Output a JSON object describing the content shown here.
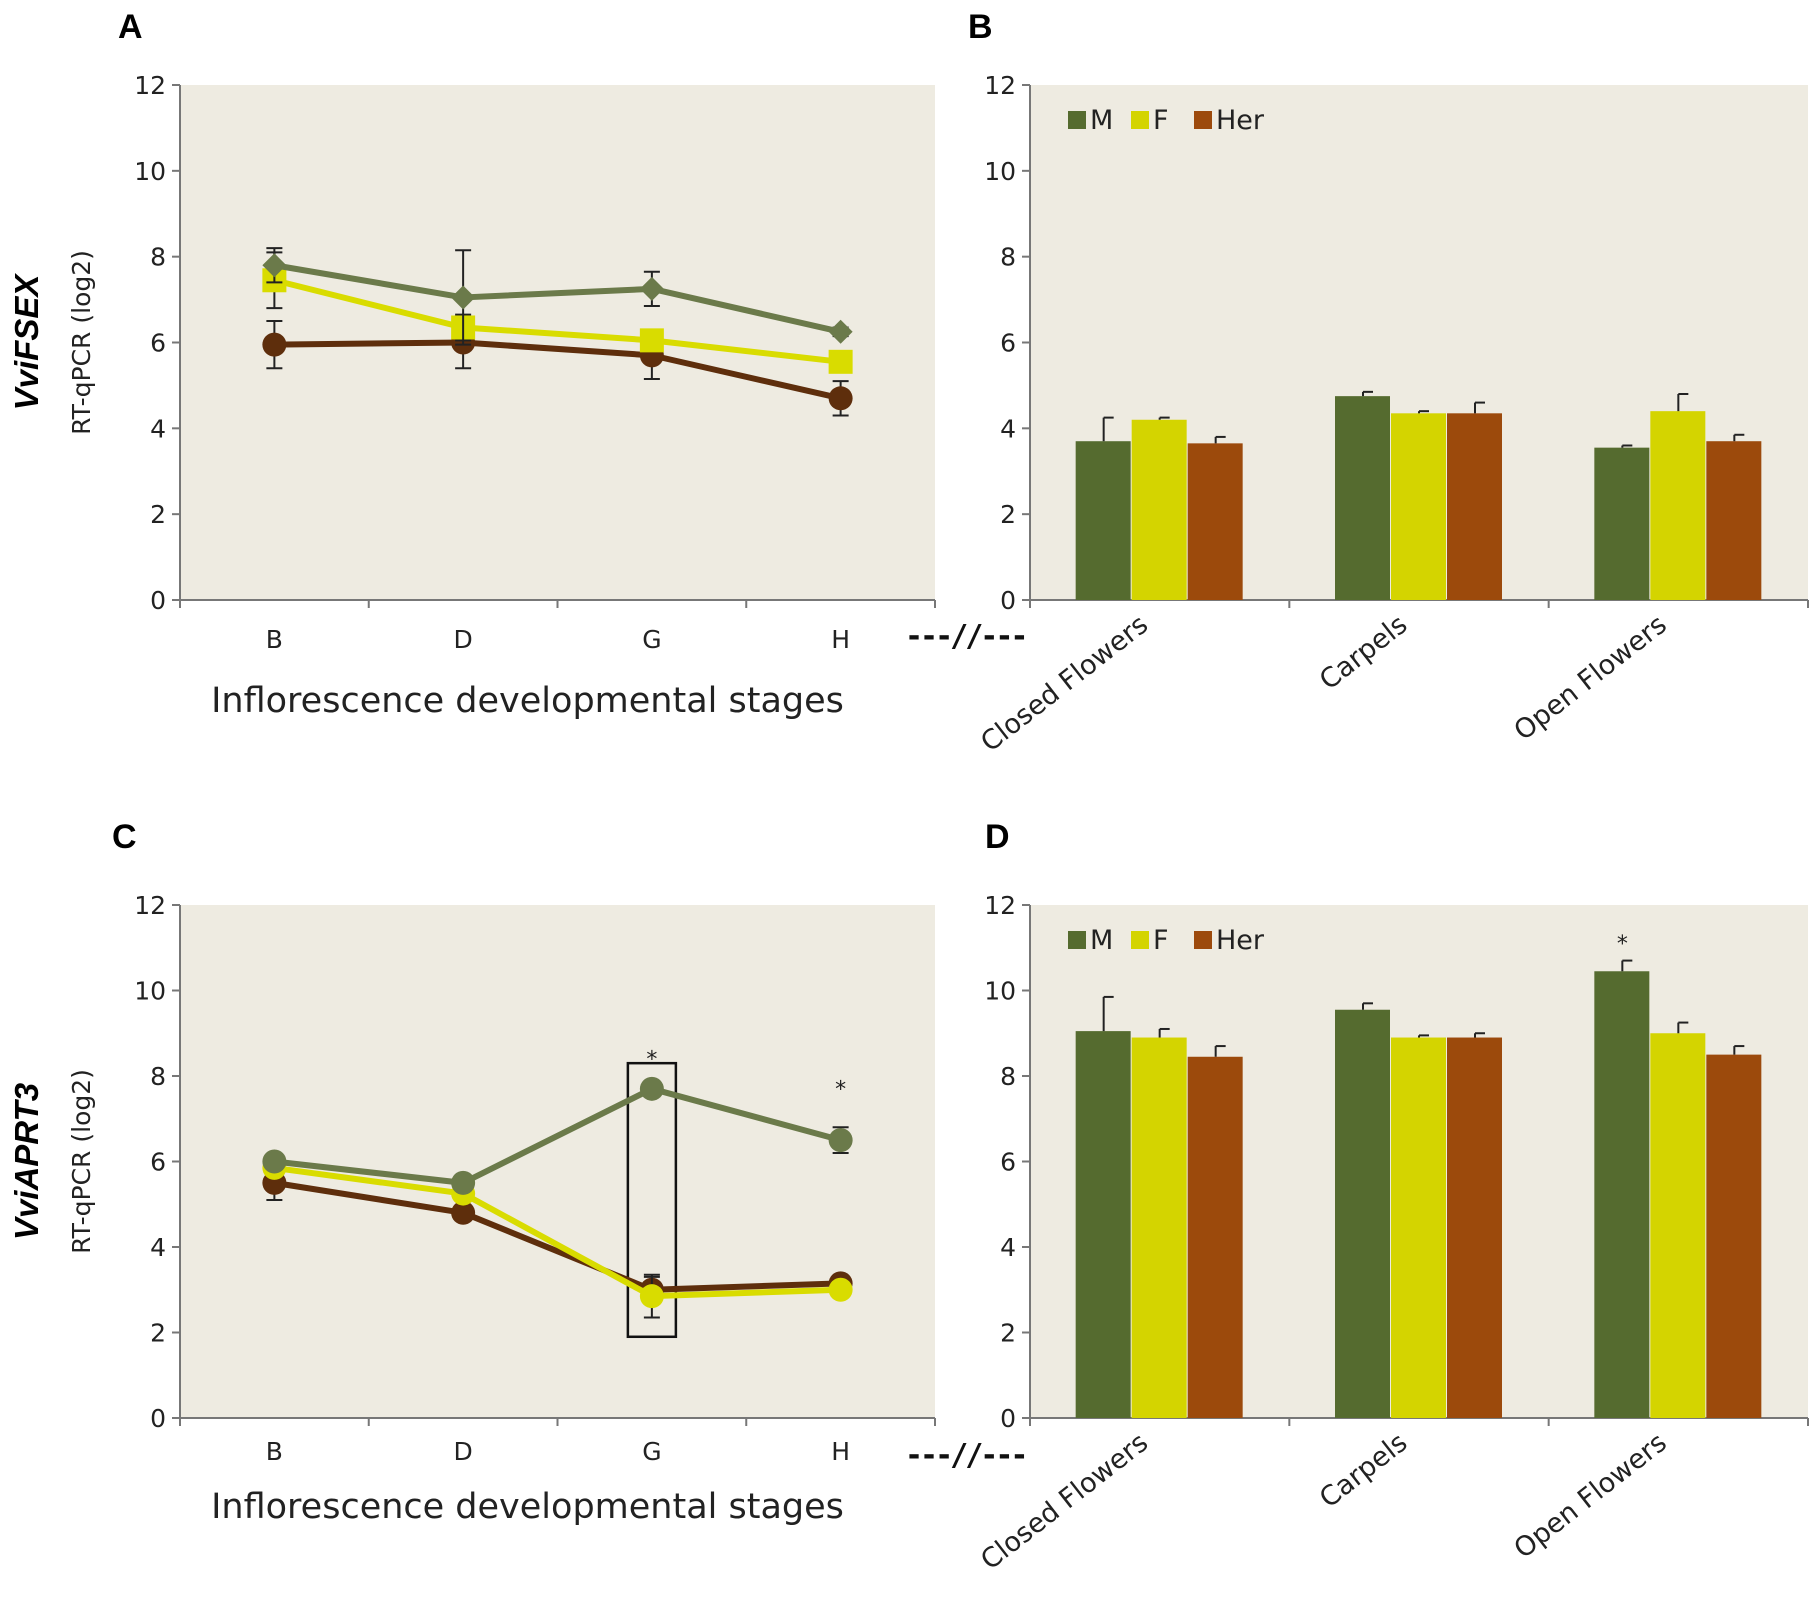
{
  "figure": {
    "break_mark": "---//---",
    "colors": {
      "plot_bg": "#eeebe1",
      "M": "#556b2f",
      "F": "#d4d400",
      "Her": "#9c4a0c",
      "M_line": "#6b7a4a",
      "F_line": "#d9dc00",
      "Her_line": "#5e2e0c",
      "axis": "#777777"
    }
  },
  "chart_data": [
    {
      "id": "A",
      "panel_label": "A",
      "gene_label": "VviFSEX",
      "type": "line",
      "ylabel": "RT-qPCR (log2)",
      "xlabel": "Inflorescence developmental stages",
      "ylim": [
        0,
        12
      ],
      "yticks": [
        "0",
        "2",
        "4",
        "6",
        "8",
        "10",
        "12"
      ],
      "categories": [
        "B",
        "D",
        "G",
        "H"
      ],
      "series": [
        {
          "name": "M",
          "marker": "diamond",
          "values": [
            7.8,
            7.05,
            7.25,
            6.25
          ],
          "errors": [
            0.4,
            1.1,
            0.4,
            0.1
          ]
        },
        {
          "name": "F",
          "marker": "square",
          "values": [
            7.45,
            6.35,
            6.05,
            5.55
          ],
          "errors": [
            0.65,
            0.3,
            0.2,
            0.2
          ]
        },
        {
          "name": "Her",
          "marker": "circle",
          "values": [
            5.95,
            6.0,
            5.7,
            4.7
          ],
          "errors": [
            0.55,
            0.6,
            0.55,
            0.4
          ]
        }
      ],
      "stars": [],
      "highlight_index": null
    },
    {
      "id": "B",
      "panel_label": "B",
      "type": "bar",
      "ylabel": "",
      "ylim": [
        0,
        12
      ],
      "yticks": [
        "0",
        "2",
        "4",
        "6",
        "8",
        "10",
        "12"
      ],
      "categories": [
        "Closed Flowers",
        "Carpels",
        "Open Flowers"
      ],
      "legend": [
        "M",
        "F",
        "Her"
      ],
      "series": [
        {
          "name": "M",
          "values": [
            3.7,
            4.75,
            3.55
          ],
          "errors": [
            0.55,
            0.1,
            0.05
          ]
        },
        {
          "name": "F",
          "values": [
            4.2,
            4.35,
            4.4
          ],
          "errors": [
            0.05,
            0.05,
            0.4
          ]
        },
        {
          "name": "Her",
          "values": [
            3.65,
            4.35,
            3.7
          ],
          "errors": [
            0.15,
            0.25,
            0.15
          ]
        }
      ],
      "stars": []
    },
    {
      "id": "C",
      "panel_label": "C",
      "gene_label": "VviAPRT3",
      "type": "line",
      "ylabel": "RT-qPCR (log2)",
      "xlabel": "Inflorescence developmental stages",
      "ylim": [
        0,
        12
      ],
      "yticks": [
        "0",
        "2",
        "4",
        "6",
        "8",
        "10",
        "12"
      ],
      "categories": [
        "B",
        "D",
        "G",
        "H"
      ],
      "series": [
        {
          "name": "M",
          "marker": "circle",
          "values": [
            6.0,
            5.5,
            7.7,
            6.5
          ],
          "errors": [
            0.1,
            0.1,
            0.1,
            0.3
          ]
        },
        {
          "name": "F",
          "marker": "circle",
          "values": [
            5.85,
            5.25,
            2.85,
            3.0
          ],
          "errors": [
            0.1,
            0.1,
            0.5,
            0.1
          ]
        },
        {
          "name": "Her",
          "marker": "circle",
          "values": [
            5.5,
            4.8,
            3.0,
            3.15
          ],
          "errors": [
            0.4,
            0.1,
            0.3,
            0.1
          ]
        }
      ],
      "stars": [
        {
          "category_index": 2,
          "text": "*",
          "y": 8.5
        },
        {
          "category_index": 3,
          "text": "*",
          "y": 7.8
        }
      ],
      "highlight_index": 2
    },
    {
      "id": "D",
      "panel_label": "D",
      "type": "bar",
      "ylabel": "",
      "ylim": [
        0,
        12
      ],
      "yticks": [
        "0",
        "2",
        "4",
        "6",
        "8",
        "10",
        "12"
      ],
      "categories": [
        "Closed Flowers",
        "Carpels",
        "Open Flowers"
      ],
      "legend": [
        "M",
        "F",
        "Her"
      ],
      "series": [
        {
          "name": "M",
          "values": [
            9.05,
            9.55,
            10.45
          ],
          "errors": [
            0.8,
            0.15,
            0.25
          ]
        },
        {
          "name": "F",
          "values": [
            8.9,
            8.9,
            9.0
          ],
          "errors": [
            0.2,
            0.05,
            0.25
          ]
        },
        {
          "name": "Her",
          "values": [
            8.45,
            8.9,
            8.5
          ],
          "errors": [
            0.25,
            0.1,
            0.2
          ]
        }
      ],
      "stars": [
        {
          "category_index": 2,
          "text": "*",
          "y": 11.2
        }
      ]
    }
  ]
}
